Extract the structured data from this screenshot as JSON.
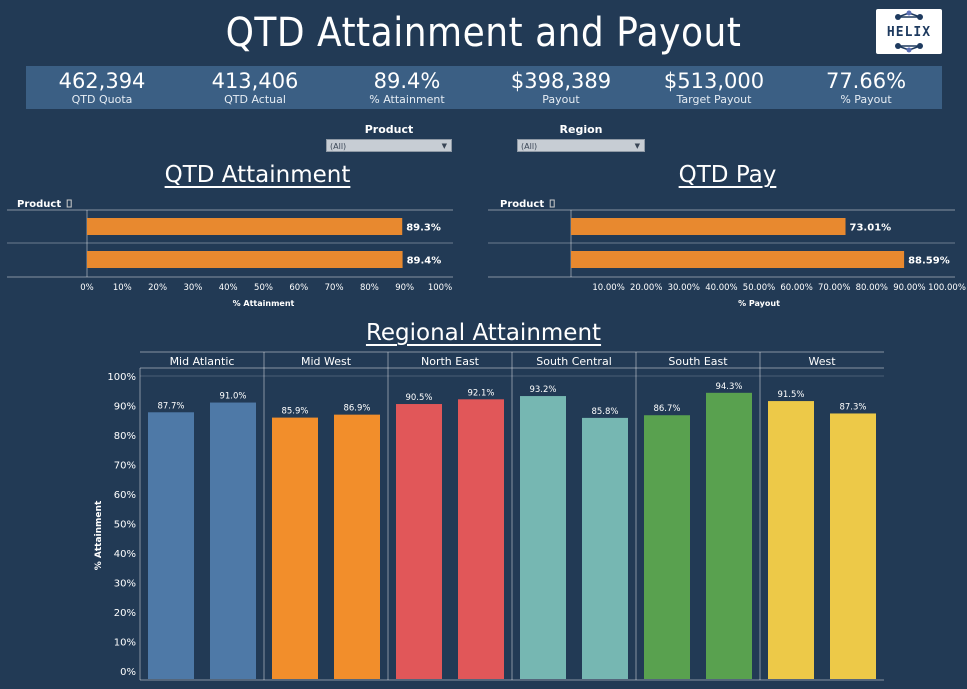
{
  "title": "QTD Attainment and Payout",
  "logo_text": "HELIX",
  "kpis": [
    {
      "value": "462,394",
      "label": "QTD Quota"
    },
    {
      "value": "413,406",
      "label": "QTD Actual"
    },
    {
      "value": "89.4%",
      "label": "% Attainment"
    },
    {
      "value": "$398,389",
      "label": "Payout"
    },
    {
      "value": "$513,000",
      "label": "Target Payout"
    },
    {
      "value": "77.66%",
      "label": "% Payout"
    }
  ],
  "filters": {
    "product": {
      "label": "Product",
      "value": "(All)"
    },
    "region": {
      "label": "Region",
      "value": "(All)"
    }
  },
  "sections": {
    "attainment": "QTD Attainment",
    "pay": "QTD Pay",
    "regional": "Regional Attainment"
  },
  "colors": {
    "orange": "#e8892f",
    "mid_atlantic": "#4e79a7",
    "mid_west": "#f28e2b",
    "north_east": "#e15759",
    "south_central": "#76b7b2",
    "south_east": "#59a14f",
    "west": "#edc948"
  },
  "chart_data": [
    {
      "type": "bar",
      "orientation": "horizontal",
      "title": "QTD Attainment",
      "row_header": "Product",
      "values": [
        89.3,
        89.4
      ],
      "value_labels": [
        "89.3%",
        "89.4%"
      ],
      "xlabel": "% Attainment",
      "xlim": [
        0,
        100
      ],
      "ticks": [
        0,
        10,
        20,
        30,
        40,
        50,
        60,
        70,
        80,
        90,
        100
      ],
      "tick_labels": [
        "0%",
        "10%",
        "20%",
        "30%",
        "40%",
        "50%",
        "60%",
        "70%",
        "80%",
        "90%",
        "100%"
      ]
    },
    {
      "type": "bar",
      "orientation": "horizontal",
      "title": "QTD Pay",
      "row_header": "Product",
      "values": [
        73.01,
        88.59
      ],
      "value_labels": [
        "73.01%",
        "88.59%"
      ],
      "xlabel": "% Payout",
      "xlim": [
        0,
        100
      ],
      "ticks": [
        10,
        20,
        30,
        40,
        50,
        60,
        70,
        80,
        90,
        100
      ],
      "tick_labels": [
        "10.00%",
        "20.00%",
        "30.00%",
        "40.00%",
        "50.00%",
        "60.00%",
        "70.00%",
        "80.00%",
        "90.00%",
        "100.00%"
      ]
    },
    {
      "type": "bar",
      "title": "Regional Attainment",
      "ylabel": "% Attainment",
      "ylim": [
        0,
        100
      ],
      "ticks": [
        0,
        10,
        20,
        30,
        40,
        50,
        60,
        70,
        80,
        90,
        100
      ],
      "tick_labels": [
        "0%",
        "10%",
        "20%",
        "30%",
        "40%",
        "50%",
        "60%",
        "70%",
        "80%",
        "90%",
        "100%"
      ],
      "regions": [
        {
          "name": "Mid Atlantic",
          "color_key": "mid_atlantic",
          "values": [
            87.7,
            91.0
          ],
          "labels": [
            "87.7%",
            "91.0%"
          ]
        },
        {
          "name": "Mid West",
          "color_key": "mid_west",
          "values": [
            85.9,
            86.9
          ],
          "labels": [
            "85.9%",
            "86.9%"
          ]
        },
        {
          "name": "North East",
          "color_key": "north_east",
          "values": [
            90.5,
            92.1
          ],
          "labels": [
            "90.5%",
            "92.1%"
          ]
        },
        {
          "name": "South Central",
          "color_key": "south_central",
          "values": [
            93.2,
            85.8
          ],
          "labels": [
            "93.2%",
            "85.8%"
          ]
        },
        {
          "name": "South East",
          "color_key": "south_east",
          "values": [
            86.7,
            94.3
          ],
          "labels": [
            "86.7%",
            "94.3%"
          ]
        },
        {
          "name": "West",
          "color_key": "west",
          "values": [
            91.5,
            87.3
          ],
          "labels": [
            "91.5%",
            "87.3%"
          ]
        }
      ]
    }
  ]
}
